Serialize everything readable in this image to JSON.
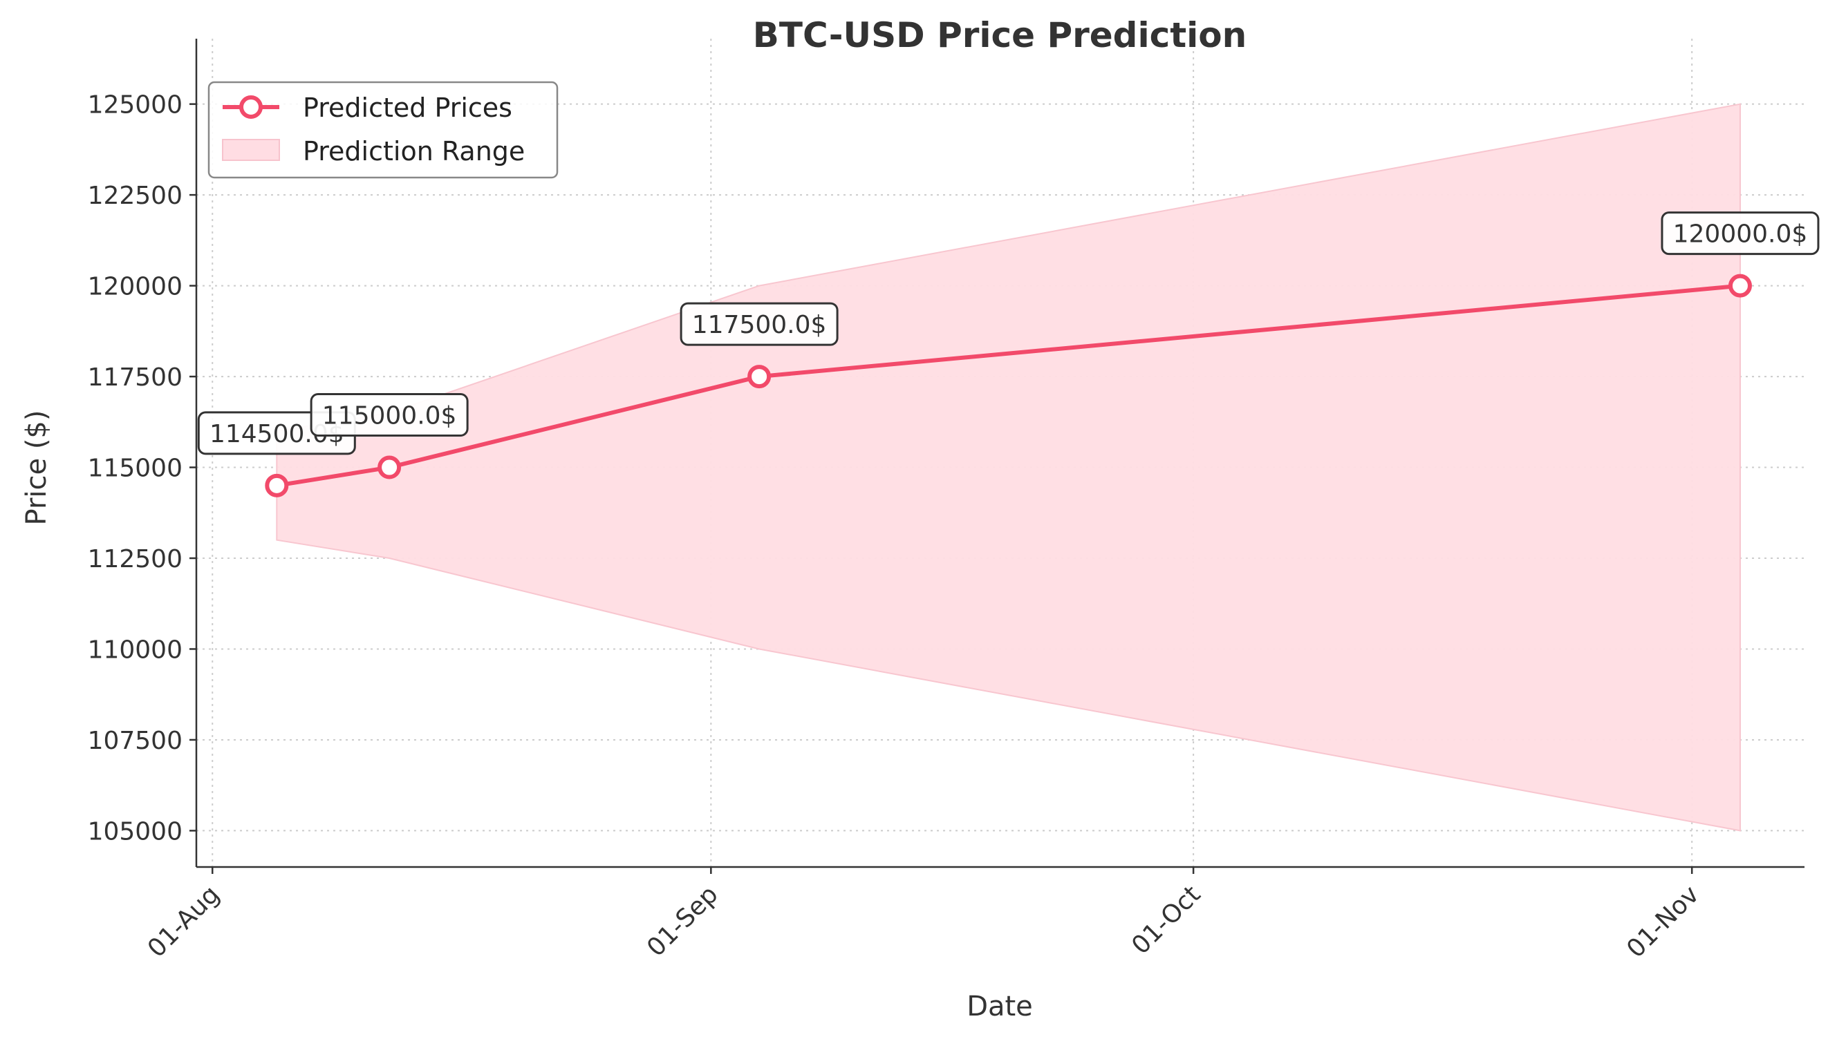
{
  "chart_data": {
    "type": "line",
    "title": "BTC-USD Price Prediction",
    "xlabel": "Date",
    "ylabel": "Price ($)",
    "x_tick_labels": [
      "01-Aug",
      "01-Sep",
      "01-Oct",
      "01-Nov"
    ],
    "x_ticks": [
      "2025-08-01",
      "2025-09-01",
      "2025-10-01",
      "2025-11-01"
    ],
    "y_ticks": [
      105000,
      107500,
      110000,
      112500,
      115000,
      117500,
      120000,
      122500,
      125000
    ],
    "y_tick_labels": [
      "105000",
      "107500",
      "110000",
      "112500",
      "115000",
      "117500",
      "120000",
      "122500",
      "125000"
    ],
    "xlim": [
      "2025-07-31",
      "2025-11-08"
    ],
    "ylim": [
      104000,
      126800
    ],
    "grid": true,
    "legend_position": "top-left",
    "legend": [
      {
        "label": "Predicted Prices",
        "kind": "line-marker"
      },
      {
        "label": "Prediction Range",
        "kind": "band"
      }
    ],
    "series": [
      {
        "name": "Predicted Prices",
        "color": "#F24A6A",
        "x": [
          "2025-08-05",
          "2025-08-12",
          "2025-09-04",
          "2025-11-04"
        ],
        "values": [
          114500,
          115000,
          117500,
          120000
        ],
        "point_labels": [
          "114500.0$",
          "115000.0$",
          "117500.0$",
          "120000.0$"
        ]
      }
    ],
    "band": {
      "name": "Prediction Range",
      "color": "#FFDDE3",
      "x": [
        "2025-08-05",
        "2025-08-12",
        "2025-09-04",
        "2025-11-04"
      ],
      "lower": [
        113000,
        112500,
        110000,
        105000
      ],
      "upper": [
        116000,
        116500,
        120000,
        125000
      ]
    }
  }
}
